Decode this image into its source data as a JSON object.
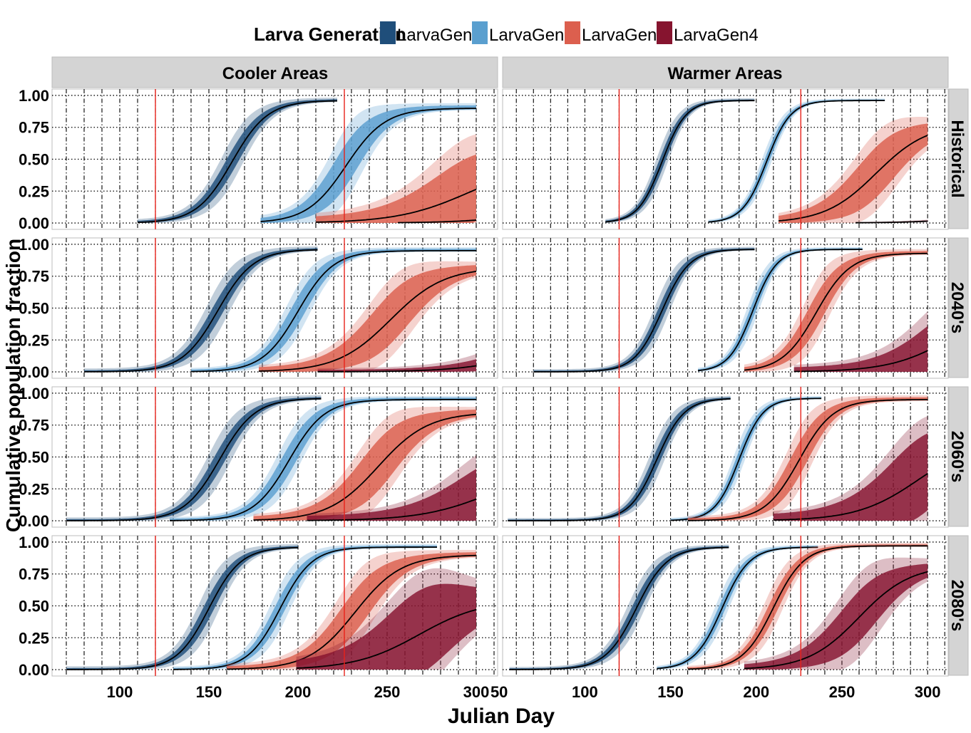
{
  "legend": {
    "title": "Larva Generation",
    "items": [
      {
        "label": "LarvaGen1",
        "color": "#1f4e7a"
      },
      {
        "label": "LarvaGen2",
        "color": "#5a9fcf"
      },
      {
        "label": "LarvaGen3",
        "color": "#dc5f4e"
      },
      {
        "label": "LarvaGen4",
        "color": "#86142f"
      }
    ]
  },
  "chart_data": {
    "type": "area",
    "xlabel": "Julian Day",
    "ylabel": "Cumulative population fraction",
    "columns": [
      "Cooler Areas",
      "Warmer Areas"
    ],
    "rows": [
      "Historical",
      "2040's",
      "2060's",
      "2080's"
    ],
    "x_ticks": {
      "Cooler Areas": [
        100,
        150,
        200,
        250,
        300
      ],
      "Warmer Areas": [
        50,
        100,
        150,
        200,
        250,
        300
      ]
    },
    "xlim": {
      "Cooler Areas": [
        62,
        312
      ],
      "Warmer Areas": [
        52,
        312
      ]
    },
    "y_ticks": [
      0.0,
      0.25,
      0.5,
      0.75,
      1.0
    ],
    "y_tick_labels": [
      "0.00",
      "0.25",
      "0.50",
      "0.75",
      "1.00"
    ],
    "ylim": [
      -0.05,
      1.05
    ],
    "vertical_reference_lines": [
      120,
      226
    ],
    "grid": true,
    "panels": [
      {
        "col": "Cooler Areas",
        "row": "Historical",
        "series": [
          {
            "gen": 1,
            "start": 110,
            "end": 222,
            "mid": 163,
            "width": 10,
            "max": 0.96,
            "inner": 0.08,
            "outer": 0.16
          },
          {
            "gen": 2,
            "start": 179,
            "end": 300,
            "mid": 227,
            "width": 11,
            "max": 0.9,
            "inner": 0.15,
            "outer": 0.26
          },
          {
            "gen": 3,
            "start": 210,
            "end": 300,
            "mid": 296,
            "width": 20,
            "max": 0.48,
            "inner": 0.24,
            "outer": 0.38
          },
          {
            "gen": 4,
            "start": 256,
            "end": 300,
            "mid": 350,
            "width": 20,
            "max": 0.3,
            "inner": 0.01,
            "outer": 0.02
          }
        ]
      },
      {
        "col": "Warmer Areas",
        "row": "Historical",
        "series": [
          {
            "gen": 1,
            "start": 112,
            "end": 199,
            "mid": 145,
            "width": 7,
            "max": 0.96,
            "inner": 0.06,
            "outer": 0.12
          },
          {
            "gen": 2,
            "start": 172,
            "end": 275,
            "mid": 206,
            "width": 7,
            "max": 0.96,
            "inner": 0.05,
            "outer": 0.1
          },
          {
            "gen": 3,
            "start": 213,
            "end": 300,
            "mid": 270,
            "width": 15,
            "max": 0.78,
            "inner": 0.18,
            "outer": 0.28
          },
          {
            "gen": 4,
            "start": 258,
            "end": 300,
            "mid": 360,
            "width": 20,
            "max": 0.3,
            "inner": 0.02,
            "outer": 0.04
          }
        ]
      },
      {
        "col": "Cooler Areas",
        "row": "2040's",
        "series": [
          {
            "gen": 1,
            "start": 80,
            "end": 211,
            "mid": 155,
            "width": 10,
            "max": 0.96,
            "inner": 0.08,
            "outer": 0.17
          },
          {
            "gen": 2,
            "start": 140,
            "end": 300,
            "mid": 200,
            "width": 10,
            "max": 0.95,
            "inner": 0.1,
            "outer": 0.18
          },
          {
            "gen": 3,
            "start": 178,
            "end": 300,
            "mid": 252,
            "width": 15,
            "max": 0.82,
            "inner": 0.18,
            "outer": 0.28
          },
          {
            "gen": 4,
            "start": 211,
            "end": 300,
            "mid": 340,
            "width": 20,
            "max": 0.4,
            "inner": 0.1,
            "outer": 0.18
          }
        ]
      },
      {
        "col": "Warmer Areas",
        "row": "2040's",
        "series": [
          {
            "gen": 1,
            "start": 70,
            "end": 199,
            "mid": 145,
            "width": 8,
            "max": 0.96,
            "inner": 0.07,
            "outer": 0.14
          },
          {
            "gen": 2,
            "start": 166,
            "end": 262,
            "mid": 198,
            "width": 7,
            "max": 0.96,
            "inner": 0.06,
            "outer": 0.12
          },
          {
            "gen": 3,
            "start": 193,
            "end": 300,
            "mid": 235,
            "width": 10,
            "max": 0.93,
            "inner": 0.12,
            "outer": 0.22
          },
          {
            "gen": 4,
            "start": 222,
            "end": 300,
            "mid": 315,
            "width": 18,
            "max": 0.55,
            "inner": 0.2,
            "outer": 0.32
          }
        ]
      },
      {
        "col": "Cooler Areas",
        "row": "2060's",
        "series": [
          {
            "gen": 1,
            "start": 70,
            "end": 213,
            "mid": 156,
            "width": 10,
            "max": 0.96,
            "inner": 0.08,
            "outer": 0.17
          },
          {
            "gen": 2,
            "start": 128,
            "end": 300,
            "mid": 195,
            "width": 10,
            "max": 0.95,
            "inner": 0.1,
            "outer": 0.18
          },
          {
            "gen": 3,
            "start": 175,
            "end": 300,
            "mid": 245,
            "width": 14,
            "max": 0.85,
            "inner": 0.18,
            "outer": 0.28
          },
          {
            "gen": 4,
            "start": 205,
            "end": 300,
            "mid": 310,
            "width": 20,
            "max": 0.45,
            "inner": 0.22,
            "outer": 0.32
          }
        ]
      },
      {
        "col": "Warmer Areas",
        "row": "2060's",
        "series": [
          {
            "gen": 1,
            "start": 55,
            "end": 185,
            "mid": 142,
            "width": 8,
            "max": 0.96,
            "inner": 0.07,
            "outer": 0.14
          },
          {
            "gen": 2,
            "start": 150,
            "end": 238,
            "mid": 190,
            "width": 7,
            "max": 0.96,
            "inner": 0.06,
            "outer": 0.12
          },
          {
            "gen": 3,
            "start": 160,
            "end": 300,
            "mid": 225,
            "width": 10,
            "max": 0.95,
            "inner": 0.12,
            "outer": 0.22
          },
          {
            "gen": 4,
            "start": 210,
            "end": 300,
            "mid": 295,
            "width": 18,
            "max": 0.65,
            "inner": 0.28,
            "outer": 0.4
          }
        ]
      },
      {
        "col": "Cooler Areas",
        "row": "2080's",
        "series": [
          {
            "gen": 1,
            "start": 70,
            "end": 200,
            "mid": 150,
            "width": 9,
            "max": 0.96,
            "inner": 0.08,
            "outer": 0.17
          },
          {
            "gen": 2,
            "start": 130,
            "end": 278,
            "mid": 190,
            "width": 9,
            "max": 0.96,
            "inner": 0.08,
            "outer": 0.16
          },
          {
            "gen": 3,
            "start": 160,
            "end": 300,
            "mid": 232,
            "width": 13,
            "max": 0.9,
            "inner": 0.15,
            "outer": 0.26
          },
          {
            "gen": 4,
            "start": 199,
            "end": 300,
            "mid": 268,
            "width": 18,
            "max": 0.55,
            "inner": 0.3,
            "outer": 0.42
          }
        ]
      },
      {
        "col": "Warmer Areas",
        "row": "2080's",
        "series": [
          {
            "gen": 1,
            "start": 56,
            "end": 184,
            "mid": 130,
            "width": 9,
            "max": 0.96,
            "inner": 0.07,
            "outer": 0.14
          },
          {
            "gen": 2,
            "start": 142,
            "end": 236,
            "mid": 180,
            "width": 8,
            "max": 0.96,
            "inner": 0.06,
            "outer": 0.12
          },
          {
            "gen": 3,
            "start": 160,
            "end": 300,
            "mid": 210,
            "width": 9,
            "max": 0.97,
            "inner": 0.08,
            "outer": 0.16
          },
          {
            "gen": 4,
            "start": 193,
            "end": 300,
            "mid": 260,
            "width": 15,
            "max": 0.82,
            "inner": 0.18,
            "outer": 0.3
          }
        ]
      }
    ]
  }
}
